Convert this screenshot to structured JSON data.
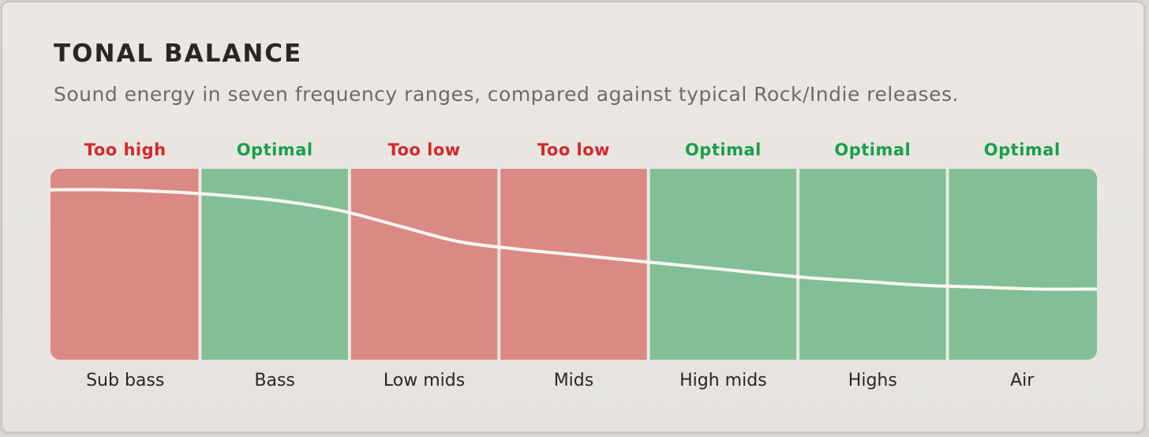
{
  "panel": {
    "title": "TONAL BALANCE",
    "subtitle": "Sound energy in seven frequency ranges, compared against typical Rock/Indie releases."
  },
  "colors": {
    "too_high_fill": "#db8985",
    "too_low_fill": "#db8985",
    "optimal_fill": "#82bf96",
    "too_high_text": "#d2282c",
    "too_low_text": "#d2282c",
    "optimal_text": "#17a04a",
    "curve": "#fbf8f2"
  },
  "bands": [
    {
      "label": "Sub bass",
      "status": "Too high",
      "state": "too_high"
    },
    {
      "label": "Bass",
      "status": "Optimal",
      "state": "optimal"
    },
    {
      "label": "Low mids",
      "status": "Too low",
      "state": "too_low"
    },
    {
      "label": "Mids",
      "status": "Too low",
      "state": "too_low"
    },
    {
      "label": "High mids",
      "status": "Optimal",
      "state": "optimal"
    },
    {
      "label": "Highs",
      "status": "Optimal",
      "state": "optimal"
    },
    {
      "label": "Air",
      "status": "Optimal",
      "state": "optimal"
    }
  ],
  "curve_levels": [
    0.89,
    0.89,
    0.88,
    0.86,
    0.83,
    0.78,
    0.7,
    0.62,
    0.58,
    0.55,
    0.52,
    0.49,
    0.46,
    0.43,
    0.41,
    0.39,
    0.38,
    0.37,
    0.37
  ]
}
